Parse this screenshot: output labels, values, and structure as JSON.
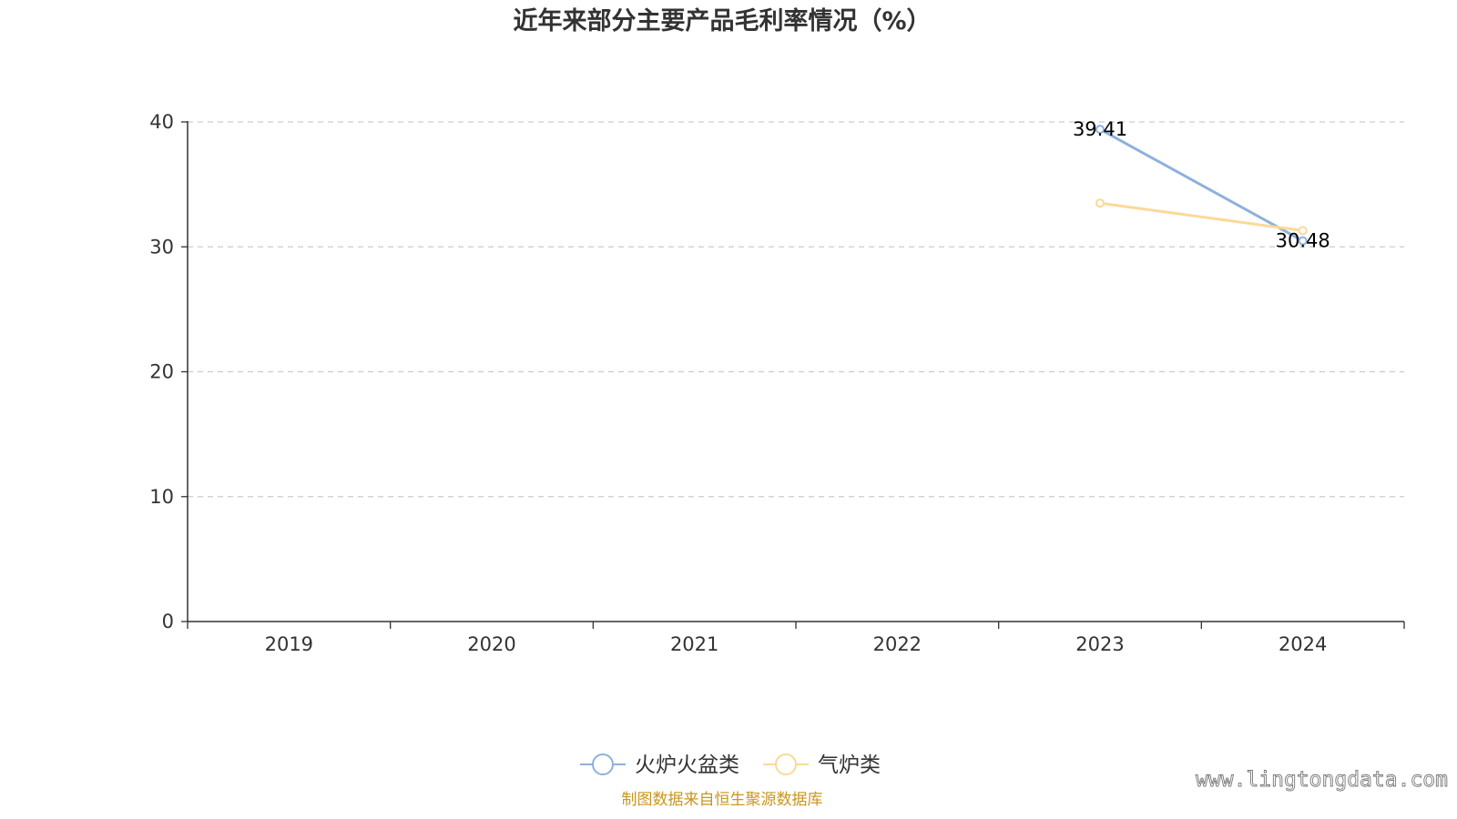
{
  "chart_data": {
    "type": "line",
    "title": "近年来部分主要产品毛利率情况（%）",
    "categories": [
      "2019",
      "2020",
      "2021",
      "2022",
      "2023",
      "2024"
    ],
    "ylim": [
      0,
      40
    ],
    "yticks": [
      "0",
      "10",
      "20",
      "30",
      "40"
    ],
    "grid": true,
    "legend_position": "bottom",
    "series": [
      {
        "name": "火炉火盆类",
        "color": "#8eb0dc",
        "values": [
          null,
          null,
          null,
          null,
          39.41,
          30.48
        ],
        "labels": [
          "",
          "",
          "",
          "",
          "39.41",
          "30.48"
        ]
      },
      {
        "name": "气炉类",
        "color": "#fbd998",
        "values": [
          null,
          null,
          null,
          null,
          33.5,
          31.3
        ],
        "labels": [
          "",
          "",
          "",
          "",
          "",
          ""
        ]
      }
    ]
  },
  "footer": {
    "source": "制图数据来自恒生聚源数据库",
    "source_color": "#c8961e",
    "watermark": "www.lingtongdata.com"
  }
}
